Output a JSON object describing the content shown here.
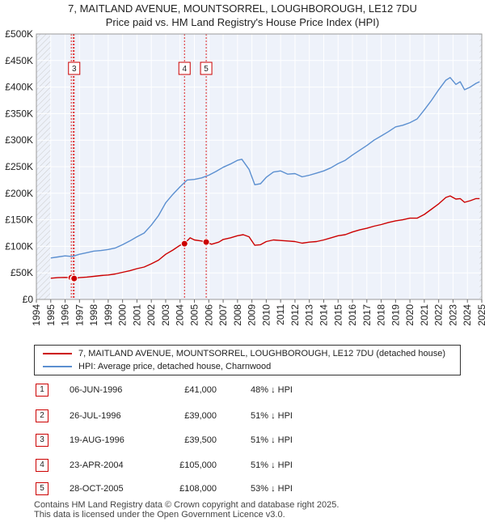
{
  "chart_data": {
    "type": "line",
    "title_line1": "7, MAITLAND AVENUE, MOUNTSORREL, LOUGHBOROUGH, LE12 7DU",
    "title_line2": "Price paid vs. HM Land Registry's House Price Index (HPI)",
    "y_ticks": [
      {
        "value": 0,
        "label": "£0"
      },
      {
        "value": 50000,
        "label": "£50K"
      },
      {
        "value": 100000,
        "label": "£100K"
      },
      {
        "value": 150000,
        "label": "£150K"
      },
      {
        "value": 200000,
        "label": "£200K"
      },
      {
        "value": 250000,
        "label": "£250K"
      },
      {
        "value": 300000,
        "label": "£300K"
      },
      {
        "value": 350000,
        "label": "£350K"
      },
      {
        "value": 400000,
        "label": "£400K"
      },
      {
        "value": 450000,
        "label": "£450K"
      },
      {
        "value": 500000,
        "label": "£500K"
      }
    ],
    "ylim": [
      0,
      500000
    ],
    "xlim": [
      1994,
      2025
    ],
    "x_ticks": [
      "1994",
      "1995",
      "1996",
      "1997",
      "1998",
      "1999",
      "2000",
      "2001",
      "2002",
      "2003",
      "2004",
      "2005",
      "2006",
      "2007",
      "2008",
      "2009",
      "2010",
      "2011",
      "2012",
      "2013",
      "2014",
      "2015",
      "2016",
      "2017",
      "2018",
      "2019",
      "2020",
      "2021",
      "2022",
      "2023",
      "2024",
      "2025"
    ],
    "hatch_ranges": [
      [
        1994,
        1995
      ],
      [
        2024.85,
        2025
      ]
    ],
    "series": [
      {
        "name": "7, MAITLAND AVENUE, MOUNTSORREL, LOUGHBOROUGH, LE12 7DU (detached house)",
        "color": "#cc0000",
        "points": [
          [
            1995.0,
            40000
          ],
          [
            1995.5,
            41000
          ],
          [
            1996.0,
            41500
          ],
          [
            1996.4,
            41000
          ],
          [
            1996.6,
            39500
          ],
          [
            1997.0,
            41000
          ],
          [
            1997.5,
            42000
          ],
          [
            1998.0,
            43500
          ],
          [
            1998.5,
            45000
          ],
          [
            1999.0,
            46000
          ],
          [
            1999.5,
            48000
          ],
          [
            2000.0,
            51000
          ],
          [
            2000.5,
            54000
          ],
          [
            2001.0,
            58000
          ],
          [
            2001.5,
            61000
          ],
          [
            2002.0,
            67000
          ],
          [
            2002.5,
            74000
          ],
          [
            2003.0,
            85000
          ],
          [
            2003.5,
            93000
          ],
          [
            2004.0,
            102000
          ],
          [
            2004.3,
            105000
          ],
          [
            2004.7,
            116000
          ],
          [
            2005.0,
            112000
          ],
          [
            2005.5,
            110000
          ],
          [
            2005.8,
            108000
          ],
          [
            2006.2,
            104000
          ],
          [
            2006.7,
            108000
          ],
          [
            2007.0,
            113000
          ],
          [
            2007.5,
            116000
          ],
          [
            2008.0,
            120000
          ],
          [
            2008.4,
            122000
          ],
          [
            2008.8,
            118000
          ],
          [
            2009.2,
            102000
          ],
          [
            2009.6,
            103000
          ],
          [
            2010.0,
            109000
          ],
          [
            2010.5,
            112000
          ],
          [
            2011.0,
            111000
          ],
          [
            2011.5,
            110000
          ],
          [
            2012.0,
            109000
          ],
          [
            2012.5,
            106000
          ],
          [
            2013.0,
            108000
          ],
          [
            2013.5,
            109000
          ],
          [
            2014.0,
            112000
          ],
          [
            2014.5,
            116000
          ],
          [
            2015.0,
            120000
          ],
          [
            2015.5,
            122000
          ],
          [
            2016.0,
            127000
          ],
          [
            2016.5,
            131000
          ],
          [
            2017.0,
            134000
          ],
          [
            2017.5,
            138000
          ],
          [
            2018.0,
            141000
          ],
          [
            2018.5,
            145000
          ],
          [
            2019.0,
            148000
          ],
          [
            2019.5,
            150000
          ],
          [
            2020.0,
            153000
          ],
          [
            2020.5,
            153000
          ],
          [
            2021.0,
            160000
          ],
          [
            2021.5,
            170000
          ],
          [
            2022.0,
            180000
          ],
          [
            2022.5,
            192000
          ],
          [
            2022.8,
            195000
          ],
          [
            2023.2,
            189000
          ],
          [
            2023.5,
            190000
          ],
          [
            2023.8,
            183000
          ],
          [
            2024.2,
            186000
          ],
          [
            2024.6,
            190000
          ],
          [
            2024.85,
            190000
          ]
        ]
      },
      {
        "name": "HPI: Average price, detached house, Charnwood",
        "color": "#5b8fd0",
        "points": [
          [
            1995.0,
            78000
          ],
          [
            1995.5,
            80000
          ],
          [
            1996.0,
            82000
          ],
          [
            1996.5,
            81000
          ],
          [
            1997.0,
            85000
          ],
          [
            1997.5,
            88000
          ],
          [
            1998.0,
            91000
          ],
          [
            1998.5,
            92000
          ],
          [
            1999.0,
            94000
          ],
          [
            1999.5,
            97000
          ],
          [
            2000.0,
            103000
          ],
          [
            2000.5,
            110000
          ],
          [
            2001.0,
            118000
          ],
          [
            2001.5,
            125000
          ],
          [
            2002.0,
            140000
          ],
          [
            2002.5,
            158000
          ],
          [
            2003.0,
            182000
          ],
          [
            2003.5,
            198000
          ],
          [
            2004.0,
            212000
          ],
          [
            2004.5,
            225000
          ],
          [
            2005.0,
            226000
          ],
          [
            2005.5,
            229000
          ],
          [
            2006.0,
            234000
          ],
          [
            2006.5,
            241000
          ],
          [
            2007.0,
            249000
          ],
          [
            2007.5,
            255000
          ],
          [
            2008.0,
            262000
          ],
          [
            2008.3,
            264000
          ],
          [
            2008.8,
            245000
          ],
          [
            2009.2,
            216000
          ],
          [
            2009.6,
            218000
          ],
          [
            2010.0,
            230000
          ],
          [
            2010.5,
            240000
          ],
          [
            2011.0,
            242000
          ],
          [
            2011.5,
            236000
          ],
          [
            2012.0,
            237000
          ],
          [
            2012.5,
            231000
          ],
          [
            2013.0,
            234000
          ],
          [
            2013.5,
            238000
          ],
          [
            2014.0,
            242000
          ],
          [
            2014.5,
            248000
          ],
          [
            2015.0,
            256000
          ],
          [
            2015.5,
            262000
          ],
          [
            2016.0,
            272000
          ],
          [
            2016.5,
            281000
          ],
          [
            2017.0,
            290000
          ],
          [
            2017.5,
            300000
          ],
          [
            2018.0,
            308000
          ],
          [
            2018.5,
            316000
          ],
          [
            2019.0,
            325000
          ],
          [
            2019.5,
            328000
          ],
          [
            2020.0,
            333000
          ],
          [
            2020.5,
            340000
          ],
          [
            2021.0,
            357000
          ],
          [
            2021.5,
            375000
          ],
          [
            2022.0,
            395000
          ],
          [
            2022.5,
            413000
          ],
          [
            2022.8,
            418000
          ],
          [
            2023.2,
            405000
          ],
          [
            2023.5,
            410000
          ],
          [
            2023.8,
            395000
          ],
          [
            2024.2,
            400000
          ],
          [
            2024.6,
            407000
          ],
          [
            2024.85,
            410000
          ]
        ]
      }
    ],
    "markers": [
      {
        "label": "3",
        "x": 1996.63,
        "y": 39500
      },
      {
        "label": "4",
        "x": 2004.31,
        "y": 105000
      },
      {
        "label": "5",
        "x": 2005.82,
        "y": 108000
      }
    ],
    "marker_points": [
      [
        1996.43,
        41000
      ],
      [
        1996.57,
        39000
      ],
      [
        1996.63,
        39500
      ],
      [
        2004.31,
        105000
      ],
      [
        2005.82,
        108000
      ]
    ],
    "vlines": [
      1996.43,
      1996.57,
      1996.63,
      2004.31,
      2005.82
    ]
  },
  "legend": {
    "property_label": "7, MAITLAND AVENUE, MOUNTSORREL, LOUGHBOROUGH, LE12 7DU (detached house)",
    "hpi_label": "HPI: Average price, detached house, Charnwood",
    "property_color": "#cc0000",
    "hpi_color": "#5b8fd0"
  },
  "transactions": [
    {
      "num": "1",
      "date": "06-JUN-1996",
      "price": "£41,000",
      "hpi": "48% ↓ HPI"
    },
    {
      "num": "2",
      "date": "26-JUL-1996",
      "price": "£39,000",
      "hpi": "51% ↓ HPI"
    },
    {
      "num": "3",
      "date": "19-AUG-1996",
      "price": "£39,500",
      "hpi": "51% ↓ HPI"
    },
    {
      "num": "4",
      "date": "23-APR-2004",
      "price": "£105,000",
      "hpi": "51% ↓ HPI"
    },
    {
      "num": "5",
      "date": "28-OCT-2005",
      "price": "£108,000",
      "hpi": "53% ↓ HPI"
    }
  ],
  "footer": {
    "line1": "Contains HM Land Registry data © Crown copyright and database right 2025.",
    "line2": "This data is licensed under the Open Government Licence v3.0."
  }
}
